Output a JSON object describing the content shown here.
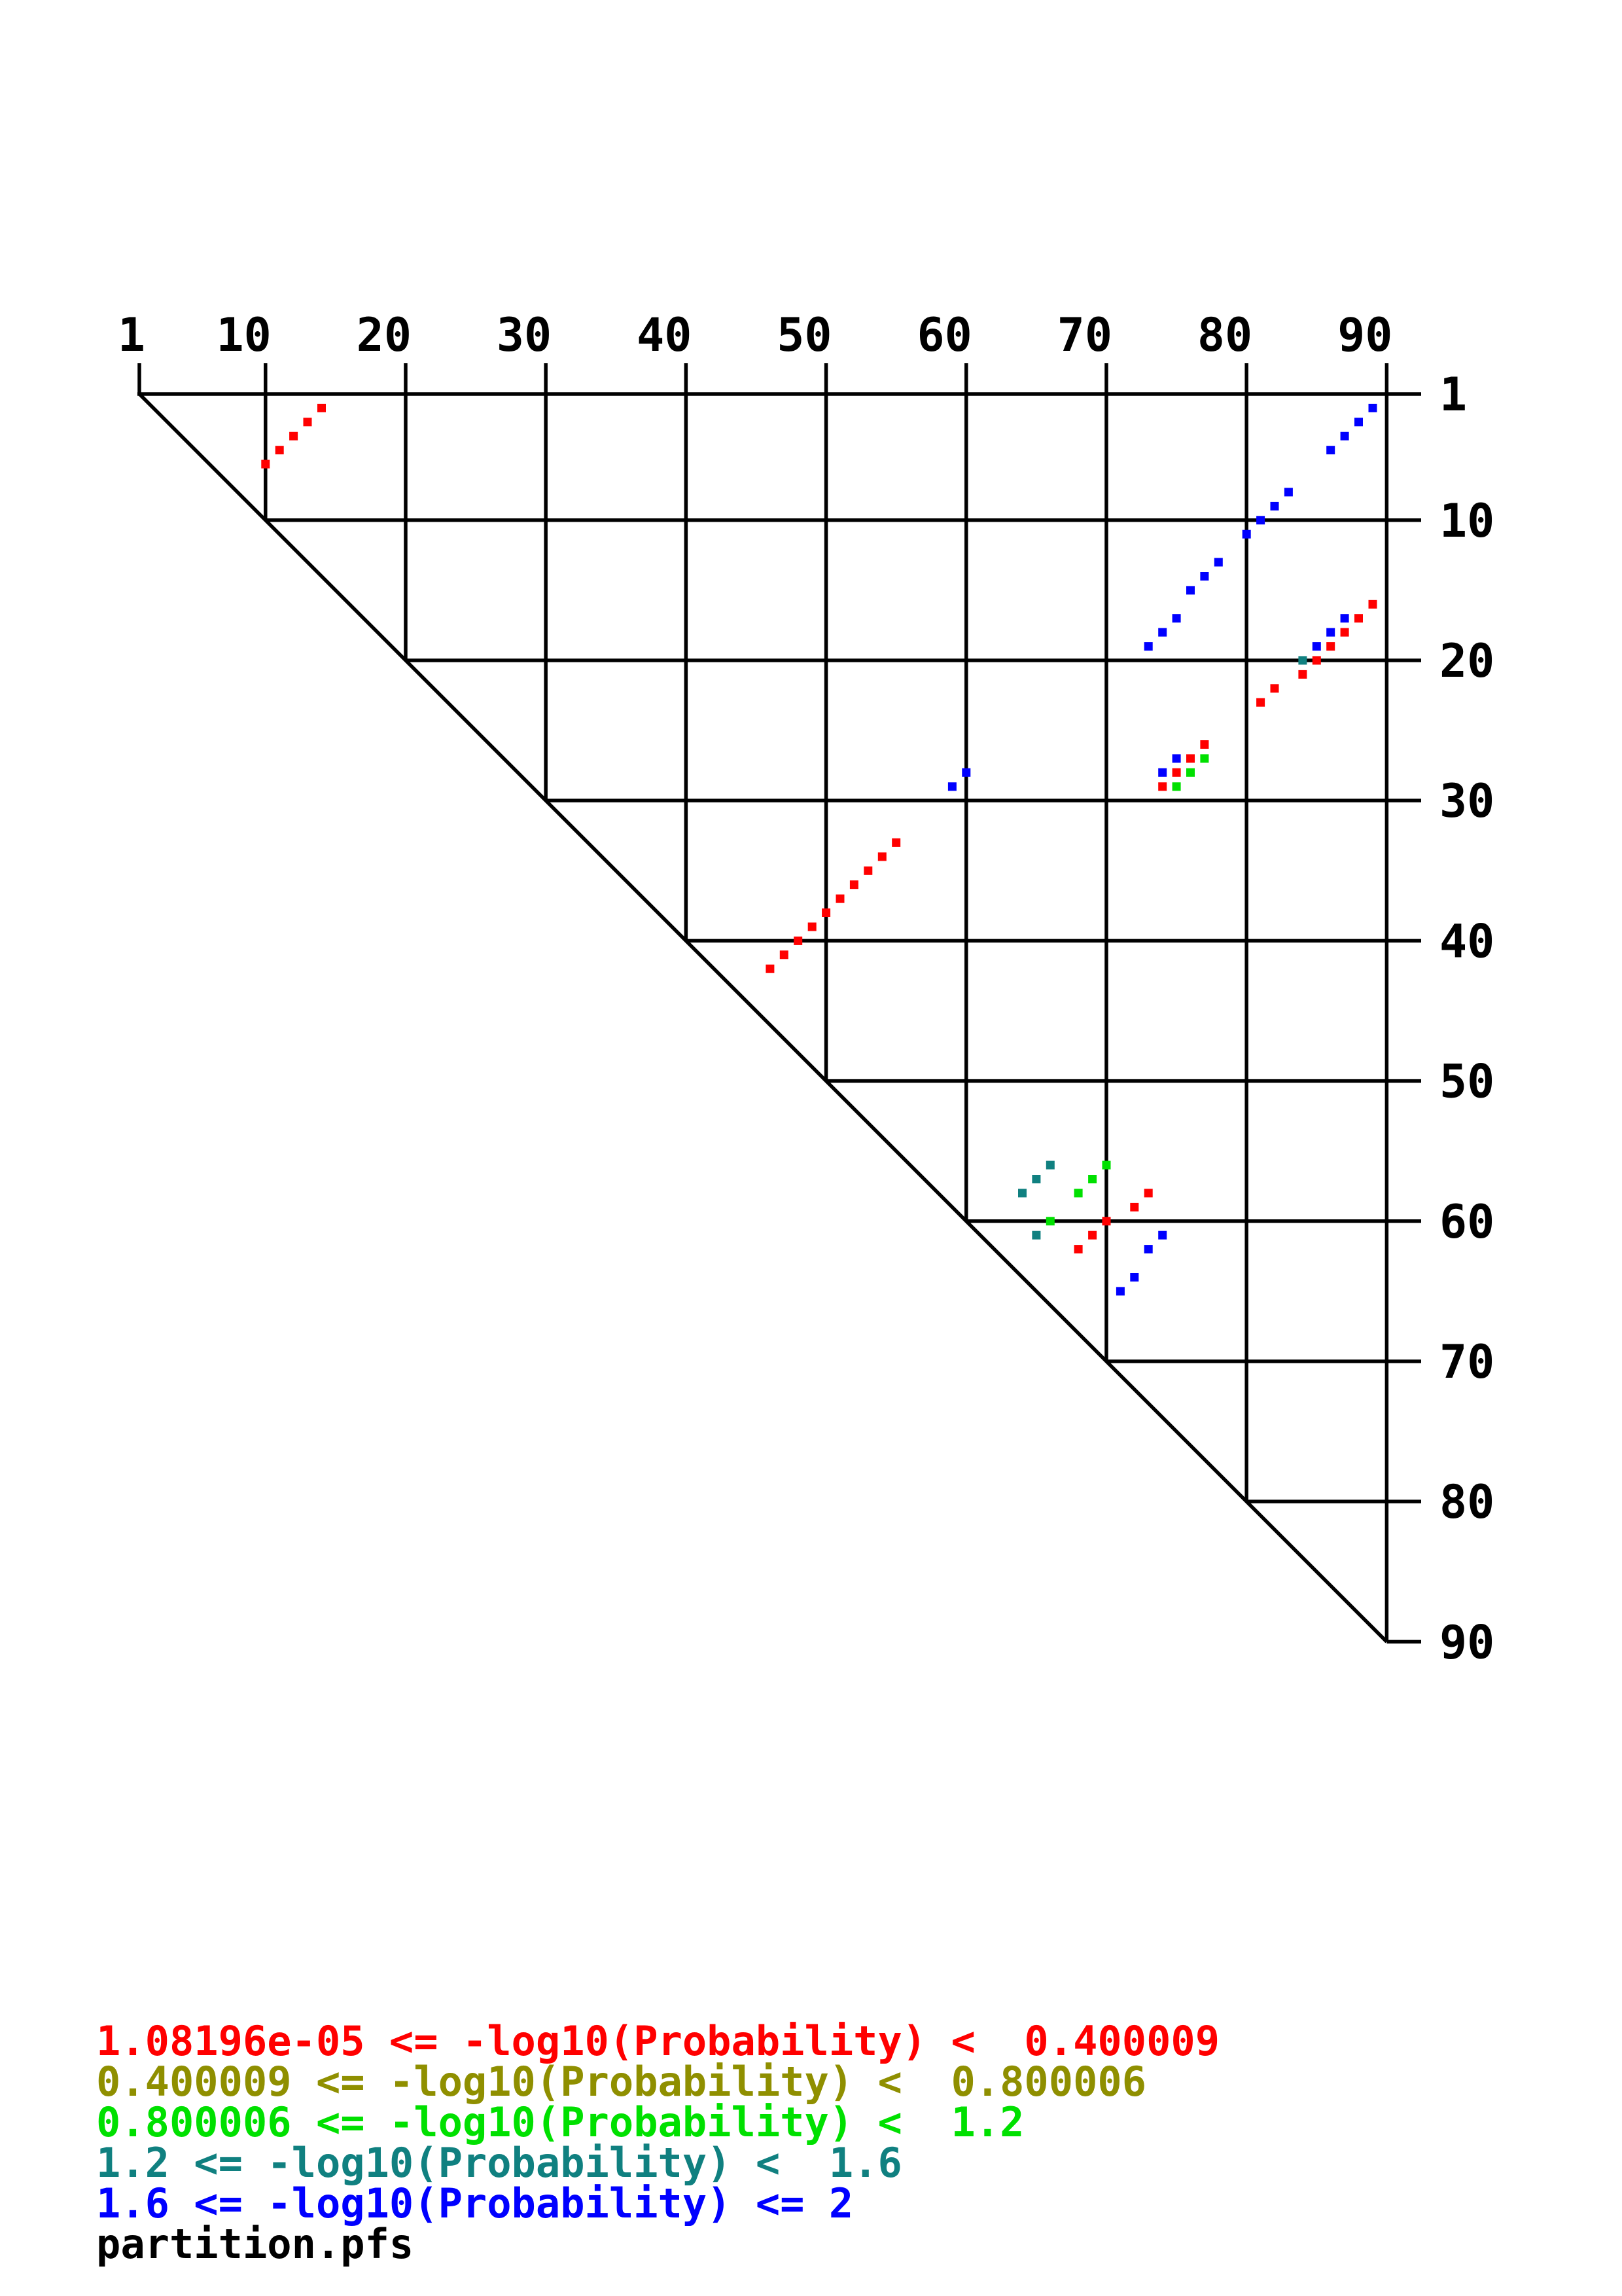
{
  "figure": {
    "background": "#ffffff",
    "footer": "partition.pfs"
  },
  "chart_data": {
    "type": "scatter",
    "subtype": "base-pair-probability-dot-plot",
    "title": "",
    "sequence_length": 90,
    "x_axis": {
      "side": "top",
      "range": [
        1,
        90
      ],
      "ticks": [
        1,
        10,
        20,
        30,
        40,
        50,
        60,
        70,
        80,
        90
      ]
    },
    "y_axis": {
      "side": "right",
      "range": [
        1,
        90
      ],
      "ticks": [
        1,
        10,
        20,
        30,
        40,
        50,
        60,
        70,
        80,
        90
      ]
    },
    "grid": true,
    "diagonal": true,
    "legend_position": "bottom-left",
    "dot_shape": "square",
    "series": [
      {
        "name": "band-1",
        "label": "1.08196e-05 <= -log10(Probability) <  0.400009",
        "color": "#ff0000",
        "points": [
          [
            2,
            14
          ],
          [
            3,
            13
          ],
          [
            4,
            12
          ],
          [
            5,
            11
          ],
          [
            6,
            10
          ],
          [
            16,
            89
          ],
          [
            17,
            88
          ],
          [
            18,
            87
          ],
          [
            19,
            86
          ],
          [
            20,
            85
          ],
          [
            21,
            84
          ],
          [
            22,
            82
          ],
          [
            23,
            81
          ],
          [
            26,
            77
          ],
          [
            27,
            76
          ],
          [
            28,
            75
          ],
          [
            29,
            74
          ],
          [
            33,
            55
          ],
          [
            34,
            54
          ],
          [
            35,
            53
          ],
          [
            36,
            52
          ],
          [
            37,
            51
          ],
          [
            38,
            50
          ],
          [
            39,
            49
          ],
          [
            40,
            48
          ],
          [
            41,
            47
          ],
          [
            42,
            46
          ],
          [
            58,
            73
          ],
          [
            59,
            72
          ],
          [
            60,
            70
          ],
          [
            61,
            69
          ],
          [
            62,
            68
          ]
        ]
      },
      {
        "name": "band-2",
        "label": "0.400009 <= -log10(Probability) <  0.800006",
        "color": "#8f8f00",
        "points": []
      },
      {
        "name": "band-3",
        "label": "0.800006 <= -log10(Probability) <  1.2",
        "color": "#00e000",
        "points": [
          [
            27,
            77
          ],
          [
            28,
            76
          ],
          [
            29,
            75
          ],
          [
            56,
            70
          ],
          [
            57,
            69
          ],
          [
            58,
            68
          ],
          [
            60,
            66
          ]
        ]
      },
      {
        "name": "band-4",
        "label": "1.2 <= -log10(Probability) <  1.6",
        "color": "#108080",
        "points": [
          [
            20,
            84
          ],
          [
            56,
            66
          ],
          [
            57,
            65
          ],
          [
            58,
            64
          ],
          [
            61,
            65
          ]
        ]
      },
      {
        "name": "band-5",
        "label": "1.6 <= -log10(Probability) <= 2",
        "color": "#0000ff",
        "points": [
          [
            2,
            89
          ],
          [
            3,
            88
          ],
          [
            4,
            87
          ],
          [
            5,
            86
          ],
          [
            8,
            83
          ],
          [
            9,
            82
          ],
          [
            10,
            81
          ],
          [
            11,
            80
          ],
          [
            13,
            78
          ],
          [
            14,
            77
          ],
          [
            15,
            76
          ],
          [
            17,
            75
          ],
          [
            17,
            87
          ],
          [
            18,
            74
          ],
          [
            18,
            86
          ],
          [
            19,
            73
          ],
          [
            19,
            85
          ],
          [
            27,
            75
          ],
          [
            28,
            74
          ],
          [
            28,
            60
          ],
          [
            29,
            59
          ],
          [
            61,
            74
          ],
          [
            62,
            73
          ],
          [
            64,
            72
          ],
          [
            65,
            71
          ]
        ]
      }
    ],
    "footer": "partition.pfs"
  }
}
